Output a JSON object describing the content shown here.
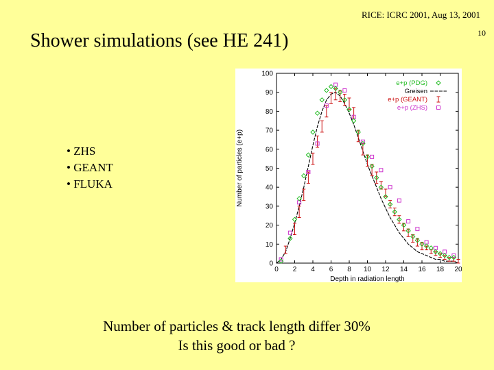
{
  "header": {
    "conference": "RICE: ICRC 2001, Aug 13, 2001",
    "page_number": "10"
  },
  "slide_title": "Shower simulations (see HE 241)",
  "bullets": [
    "ZHS",
    "GEANT",
    "FLUKA"
  ],
  "caption": {
    "line1": "Number of particles & track length differ 30%",
    "line2": "Is this good or bad ?"
  },
  "colors": {
    "background": "#FFFF99",
    "pdg": "#22BB22",
    "greisen": "#000000",
    "geant": "#CC1111",
    "zhs": "#CC33CC"
  },
  "chart_data": {
    "type": "scatter",
    "xlabel": "Depth in radiation length",
    "ylabel": "Number of particles (e+p)",
    "xlim": [
      0,
      20
    ],
    "ylim": [
      0,
      100
    ],
    "xticks": [
      0,
      2,
      4,
      6,
      8,
      10,
      12,
      14,
      16,
      18,
      20
    ],
    "yticks": [
      0,
      10,
      20,
      30,
      40,
      50,
      60,
      70,
      80,
      90,
      100
    ],
    "legend_position": "top-right",
    "series": [
      {
        "name": "e+p (PDG)",
        "style": "diamond",
        "color": "#22BB22",
        "x": [
          0.5,
          1.5,
          2,
          2.5,
          3,
          3.5,
          4,
          4.5,
          5,
          5.5,
          6,
          6.5,
          7,
          7.5,
          8,
          8.5,
          9,
          9.5,
          10,
          10.5,
          11,
          11.5,
          12,
          12.5,
          13,
          13.5,
          14,
          14.5,
          15,
          15.5,
          16,
          16.5,
          17,
          17.5,
          18,
          18.5,
          19,
          19.5
        ],
        "y": [
          1,
          13,
          23,
          34,
          46,
          57,
          69,
          79,
          86,
          91,
          93,
          92,
          90,
          86,
          81,
          75,
          69,
          63,
          56,
          51,
          45,
          40,
          35,
          31,
          27,
          23,
          20,
          17,
          14,
          12,
          10,
          9,
          8,
          6,
          5,
          4,
          3,
          3
        ]
      },
      {
        "name": "Greisen",
        "style": "line",
        "color": "#000000",
        "x": [
          0,
          0.5,
          1,
          1.5,
          2,
          2.5,
          3,
          3.5,
          4,
          4.5,
          5,
          5.5,
          6,
          6.5,
          7,
          7.5,
          8,
          8.5,
          9,
          9.5,
          10,
          10.5,
          11,
          11.5,
          12,
          12.5,
          13,
          13.5,
          14,
          14.5,
          15,
          15.5,
          16,
          16.5,
          17,
          17.5,
          18,
          18.5,
          19,
          19.5,
          20
        ],
        "y": [
          0,
          2,
          6,
          13,
          21,
          30,
          40,
          51,
          62,
          72,
          80,
          86,
          89,
          90,
          88,
          84,
          79,
          73,
          66,
          59,
          52,
          46,
          40,
          34,
          29,
          24,
          20,
          16,
          13,
          10,
          8,
          6,
          5,
          4,
          3,
          2,
          2,
          1,
          1,
          1,
          0
        ]
      },
      {
        "name": "e+p (GEANT)",
        "style": "errorbar",
        "color": "#CC1111",
        "x": [
          1,
          2,
          2.5,
          3,
          3.5,
          4,
          4.5,
          5,
          5.5,
          6,
          6.5,
          7,
          7.5,
          8,
          8.5,
          9,
          9.5,
          10,
          10.5,
          11,
          11.5,
          12,
          12.5,
          13,
          13.5,
          14,
          14.5,
          15,
          15.5,
          16,
          16.5,
          17,
          17.5,
          18,
          18.5,
          19,
          19.5,
          20
        ],
        "y": [
          7,
          18,
          27,
          36,
          45,
          55,
          64,
          72,
          80,
          87,
          89,
          88,
          86,
          84,
          79,
          67,
          60,
          54,
          49,
          45,
          41,
          37,
          31,
          27,
          23,
          19,
          16,
          13,
          11,
          9,
          8,
          6,
          5,
          4,
          3,
          2,
          2,
          1
        ],
        "err": [
          2,
          3,
          3,
          3,
          3,
          3,
          3,
          3,
          3,
          3,
          3,
          3,
          3,
          3,
          3,
          3,
          3,
          3,
          3,
          3,
          2,
          2,
          2,
          2,
          2,
          2,
          2,
          2,
          2,
          2,
          1,
          1,
          1,
          1,
          1,
          1,
          1,
          1
        ]
      },
      {
        "name": "e+p (ZHS)",
        "style": "square",
        "color": "#CC33CC",
        "x": [
          0.5,
          1.5,
          2.5,
          3.5,
          4.5,
          5.5,
          6.5,
          7.5,
          8.5,
          9.5,
          10.5,
          11.5,
          12.5,
          13.5,
          14.5,
          15.5,
          16.5,
          17.5,
          18.5,
          19.5
        ],
        "y": [
          2,
          16,
          32,
          48,
          63,
          83,
          94,
          91,
          77,
          64,
          56,
          49,
          40,
          33,
          22,
          18,
          11,
          8,
          6,
          4
        ]
      }
    ]
  }
}
